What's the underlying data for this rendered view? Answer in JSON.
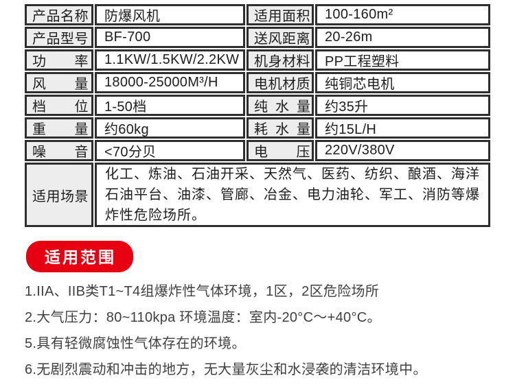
{
  "colors": {
    "border": "#2e2e2e",
    "label_bg": "#ededed",
    "badge_red": "#e60012"
  },
  "spec_table": {
    "rows": [
      {
        "l_label": "产品名称",
        "l_value": "防爆风机",
        "r_label": "适用面积",
        "r_value": "100-160m²"
      },
      {
        "l_label": "产品型号",
        "l_value": "BF-700",
        "r_label": "送风距离",
        "r_value": "20-26m"
      },
      {
        "l_label": "功  率",
        "l_value": "1.1KW/1.5KW/2.2KW",
        "r_label": "机身材料",
        "r_value": "PP工程塑料"
      },
      {
        "l_label": "风  量",
        "l_value": "18000-25000M³/H",
        "r_label": "电机材质",
        "r_value": "纯铜芯电机"
      },
      {
        "l_label": "档  位",
        "l_value": "1-50档",
        "r_label": "纯 水 量",
        "r_value": "约35升"
      },
      {
        "l_label": "重  量",
        "l_value": "约60kg",
        "r_label": "耗 水 量",
        "r_value": "约15L/H"
      },
      {
        "l_label": "噪  音",
        "l_value": "<70分贝",
        "r_label": "电  压",
        "r_value": "220V/380V"
      }
    ],
    "scene": {
      "label": "适用场景",
      "value": "化工、炼油、石油开采、天然气、医药、纺织、酿酒、海洋石油平台、油漆、管廊、冶金、电力油轮、军工、消防等爆炸性危险场所。"
    }
  },
  "badge": {
    "label": "适用范围"
  },
  "scope_list": {
    "items": [
      "1.IIA、IIB类T1~T4组爆炸性气体环境，1区，2区危险场所",
      "2.大气压力：80~110kpa 环境温度：室内-20°C～+40°C。",
      "5.具有轻微腐蚀性气体存在的环境。",
      "6.无剧烈震动和冲击的地方，无大量灰尘和水浸袭的清洁环境中。"
    ]
  }
}
